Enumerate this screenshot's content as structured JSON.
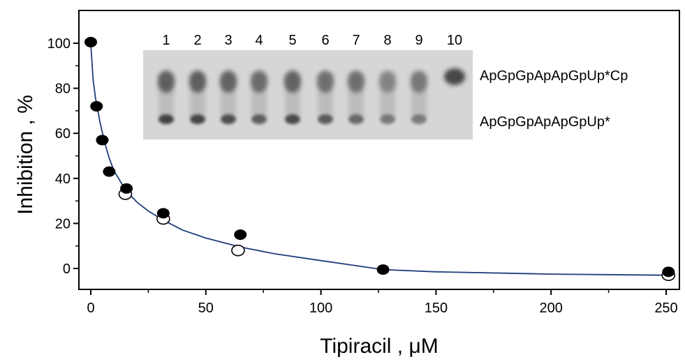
{
  "chart_data": {
    "type": "scatter",
    "xlabel": "Tipiracil , μM",
    "ylabel": "Inhibition , %",
    "xlim": [
      0,
      260
    ],
    "ylim": [
      -9,
      114
    ],
    "x_ticks": [
      0,
      50,
      100,
      150,
      200,
      250
    ],
    "y_ticks": [
      0,
      20,
      40,
      60,
      80,
      100
    ],
    "grid": false,
    "colors": {
      "curve": "#1f3d7a",
      "filled": "#000000",
      "open_stroke": "#000000",
      "frame": "#000000"
    },
    "series": [
      {
        "marker": "filled-circle",
        "x": [
          0,
          2.5,
          5,
          8,
          15.5,
          31.5,
          65,
          127,
          251
        ],
        "y": [
          100.5,
          72,
          57,
          43,
          35.5,
          24.5,
          15,
          -0.5,
          -1.5
        ]
      },
      {
        "marker": "open-circle",
        "x": [
          15,
          31.5,
          64,
          251
        ],
        "y": [
          33,
          22,
          8,
          -3
        ]
      },
      {
        "marker": "fit-line",
        "x": [
          0,
          1,
          2,
          4,
          6,
          8,
          10,
          15,
          20,
          25,
          31.5,
          40,
          50,
          65,
          80,
          100,
          127,
          150,
          200,
          251
        ],
        "y": [
          100,
          84,
          76,
          65,
          56,
          49,
          43.5,
          35,
          29.5,
          25.5,
          21.5,
          17,
          13.5,
          9.5,
          6.5,
          3.5,
          -0.5,
          -1.5,
          -2.5,
          -3
        ]
      }
    ],
    "inset": {
      "lanes": [
        "1",
        "2",
        "3",
        "4",
        "5",
        "6",
        "7",
        "8",
        "9",
        "10"
      ],
      "band_labels": [
        "ApGpGpApApGpUp*Cp",
        "ApGpGpApApGpUp*"
      ],
      "product_band_intensity": [
        0.75,
        0.75,
        0.72,
        0.65,
        0.72,
        0.62,
        0.62,
        0.45,
        0.55,
        0.95
      ],
      "substrate_band_intensity": [
        0.9,
        0.88,
        0.82,
        0.72,
        0.85,
        0.75,
        0.65,
        0.55,
        0.55,
        0
      ]
    }
  }
}
